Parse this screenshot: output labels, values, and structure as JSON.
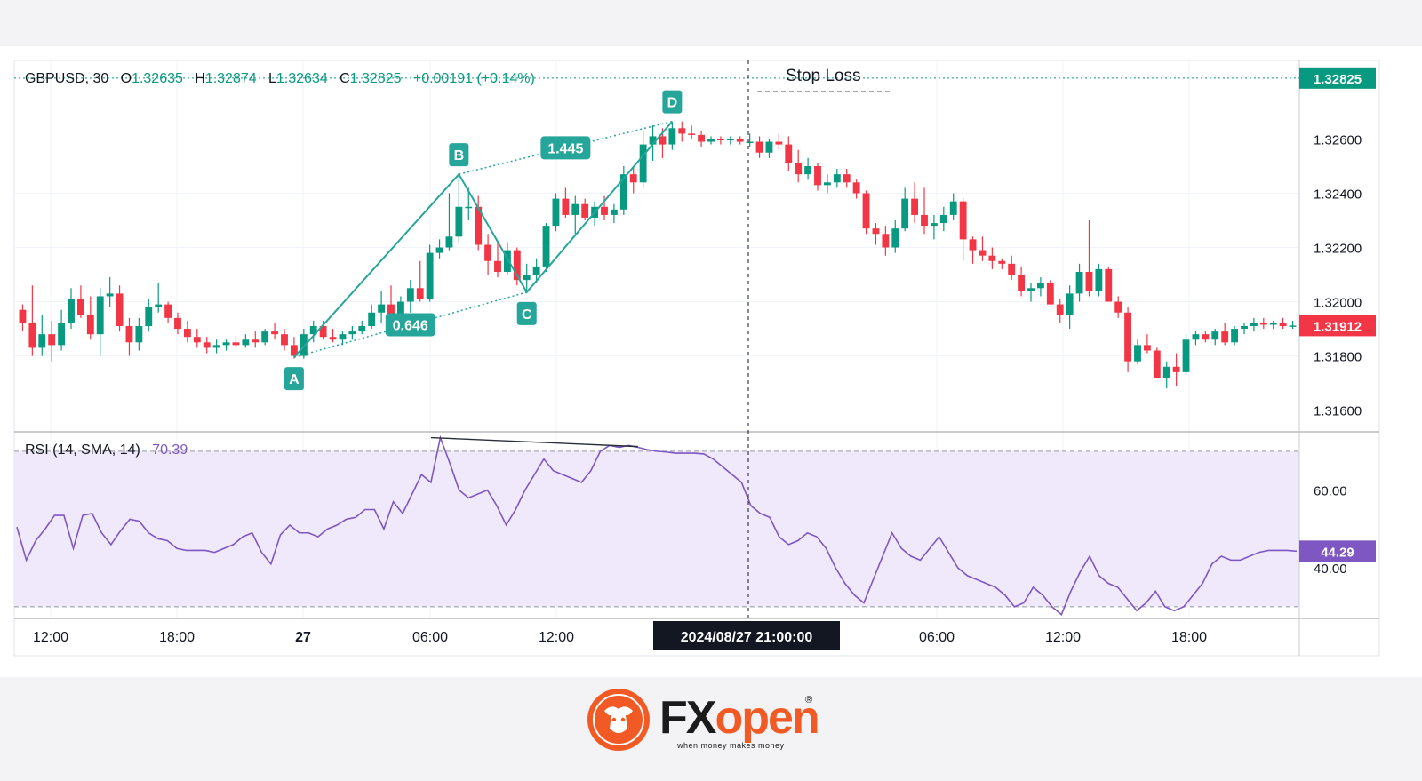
{
  "legend": {
    "symbol": "GBPUSD, 30",
    "o_label": "O",
    "o_value": "1.32635",
    "h_label": "H",
    "h_value": "1.32874",
    "l_label": "L",
    "l_value": "1.32634",
    "c_label": "C",
    "c_value": "1.32825",
    "change": "+0.00191 (+0.14%)"
  },
  "rsi_legend": {
    "label": "RSI (14, SMA, 14)",
    "value": "70.39"
  },
  "brand": {
    "name_a": "FX",
    "name_b": "open",
    "reg": "®",
    "tagline": "when money makes money"
  },
  "colors": {
    "up": "#089981",
    "down": "#f23645",
    "pattern": "#26a69a",
    "rsi": "#7e57c2",
    "rsi_band": "#efe9fb",
    "logo": "#f15a24"
  },
  "chart_data": [
    {
      "type": "candlestick",
      "symbol": "GBPUSD",
      "timeframe": "30",
      "ylim": [
        1.3152,
        1.3289
      ],
      "price_ticks": [
        "1.32600",
        "1.32400",
        "1.32200",
        "1.32000",
        "1.31800",
        "1.31600"
      ],
      "x_ticks": [
        "12:00",
        "18:00",
        "27",
        "06:00",
        "12:00",
        "06:00",
        "12:00",
        "18:00"
      ],
      "crosshair_label": "2024/08/27   21:00:00",
      "price_badges": [
        {
          "label": "1.32825",
          "price": 1.32825,
          "color": "#089981"
        },
        {
          "label": "1.31912",
          "price": 1.31912,
          "color": "#f23645"
        }
      ],
      "pattern_points": [
        {
          "label": "A",
          "bar": 28,
          "price": 1.31795
        },
        {
          "label": "B",
          "bar": 45,
          "price": 1.3247
        },
        {
          "label": "C",
          "bar": 52,
          "price": 1.32035
        },
        {
          "label": "D",
          "bar": 67,
          "price": 1.32665
        }
      ],
      "ratios": [
        {
          "label": "0.646",
          "from": "A",
          "to": "C"
        },
        {
          "label": "1.445",
          "from": "B",
          "to": "D"
        }
      ],
      "annotations": [
        "Stop Loss"
      ],
      "stop_loss_price": 1.32775,
      "candles": [
        [
          1.3197,
          1.3199,
          1.3189,
          1.3192
        ],
        [
          1.3192,
          1.3206,
          1.318,
          1.3183
        ],
        [
          1.3183,
          1.3195,
          1.318,
          1.3188
        ],
        [
          1.3188,
          1.3193,
          1.3178,
          1.3184
        ],
        [
          1.3184,
          1.3197,
          1.3182,
          1.3192
        ],
        [
          1.3192,
          1.3205,
          1.319,
          1.3201
        ],
        [
          1.3201,
          1.3206,
          1.3194,
          1.3195
        ],
        [
          1.3195,
          1.3202,
          1.3186,
          1.3188
        ],
        [
          1.3188,
          1.3205,
          1.318,
          1.3202
        ],
        [
          1.3202,
          1.3209,
          1.3198,
          1.3203
        ],
        [
          1.3203,
          1.3206,
          1.3189,
          1.3191
        ],
        [
          1.3191,
          1.3194,
          1.318,
          1.3185
        ],
        [
          1.3185,
          1.3194,
          1.3182,
          1.3191
        ],
        [
          1.3191,
          1.3201,
          1.3189,
          1.3198
        ],
        [
          1.3198,
          1.3207,
          1.3196,
          1.3199
        ],
        [
          1.3199,
          1.32,
          1.3192,
          1.3194
        ],
        [
          1.3194,
          1.3196,
          1.3188,
          1.319
        ],
        [
          1.319,
          1.3193,
          1.3185,
          1.3187
        ],
        [
          1.3187,
          1.319,
          1.3183,
          1.3185
        ],
        [
          1.3185,
          1.3187,
          1.3181,
          1.3183
        ],
        [
          1.3183,
          1.3186,
          1.3181,
          1.3184
        ],
        [
          1.3184,
          1.3186,
          1.3182,
          1.3185
        ],
        [
          1.3185,
          1.3187,
          1.3183,
          1.3184
        ],
        [
          1.3184,
          1.3188,
          1.3183,
          1.3186
        ],
        [
          1.3186,
          1.3189,
          1.3183,
          1.3185
        ],
        [
          1.3185,
          1.319,
          1.3184,
          1.3189
        ],
        [
          1.3189,
          1.3192,
          1.3186,
          1.3188
        ],
        [
          1.3188,
          1.319,
          1.3182,
          1.3184
        ],
        [
          1.3184,
          1.3187,
          1.3179,
          1.318
        ],
        [
          1.318,
          1.319,
          1.3179,
          1.3188
        ],
        [
          1.3188,
          1.3193,
          1.3185,
          1.3191
        ],
        [
          1.3191,
          1.3193,
          1.3186,
          1.3187
        ],
        [
          1.3187,
          1.319,
          1.3185,
          1.3186
        ],
        [
          1.3186,
          1.3189,
          1.3184,
          1.3188
        ],
        [
          1.3188,
          1.3191,
          1.3186,
          1.3189
        ],
        [
          1.3189,
          1.3193,
          1.3188,
          1.3191
        ],
        [
          1.3191,
          1.3199,
          1.319,
          1.3196
        ],
        [
          1.3196,
          1.3204,
          1.3192,
          1.3199
        ],
        [
          1.3199,
          1.3206,
          1.319,
          1.3191
        ],
        [
          1.3191,
          1.3202,
          1.3189,
          1.32
        ],
        [
          1.32,
          1.3208,
          1.3196,
          1.3205
        ],
        [
          1.3205,
          1.3215,
          1.32,
          1.3201
        ],
        [
          1.3201,
          1.3221,
          1.32,
          1.3218
        ],
        [
          1.3218,
          1.3223,
          1.3216,
          1.322
        ],
        [
          1.322,
          1.324,
          1.3219,
          1.3224
        ],
        [
          1.3224,
          1.3247,
          1.3222,
          1.3235
        ],
        [
          1.3235,
          1.3242,
          1.323,
          1.3235
        ],
        [
          1.3235,
          1.3239,
          1.3219,
          1.3221
        ],
        [
          1.3221,
          1.3225,
          1.321,
          1.3215
        ],
        [
          1.3215,
          1.3222,
          1.3209,
          1.3211
        ],
        [
          1.3211,
          1.3222,
          1.321,
          1.3219
        ],
        [
          1.3219,
          1.322,
          1.3206,
          1.3208
        ],
        [
          1.3208,
          1.3214,
          1.3204,
          1.321
        ],
        [
          1.321,
          1.3216,
          1.3207,
          1.3213
        ],
        [
          1.3213,
          1.3229,
          1.3211,
          1.3228
        ],
        [
          1.3228,
          1.324,
          1.3226,
          1.3238
        ],
        [
          1.3238,
          1.3242,
          1.3231,
          1.3232
        ],
        [
          1.3232,
          1.3239,
          1.3225,
          1.3236
        ],
        [
          1.3236,
          1.3238,
          1.323,
          1.3231
        ],
        [
          1.3231,
          1.3237,
          1.3228,
          1.3235
        ],
        [
          1.3235,
          1.3239,
          1.323,
          1.3232
        ],
        [
          1.3232,
          1.3236,
          1.3229,
          1.3234
        ],
        [
          1.3234,
          1.325,
          1.3232,
          1.3247
        ],
        [
          1.3247,
          1.325,
          1.324,
          1.3244
        ],
        [
          1.3244,
          1.3263,
          1.3242,
          1.3258
        ],
        [
          1.3258,
          1.3265,
          1.3252,
          1.3261
        ],
        [
          1.3261,
          1.3264,
          1.3253,
          1.3258
        ],
        [
          1.3258,
          1.32665,
          1.3256,
          1.3264
        ],
        [
          1.3264,
          1.32665,
          1.3259,
          1.3262
        ],
        [
          1.3262,
          1.3265,
          1.326,
          1.32615
        ],
        [
          1.32615,
          1.3263,
          1.3257,
          1.3259
        ],
        [
          1.3259,
          1.3261,
          1.3258,
          1.326
        ],
        [
          1.326,
          1.3261,
          1.3258,
          1.32595
        ],
        [
          1.32595,
          1.3261,
          1.3258,
          1.326
        ],
        [
          1.326,
          1.3261,
          1.3258,
          1.3259
        ],
        [
          1.3259,
          1.3262,
          1.3257,
          1.3259
        ],
        [
          1.3259,
          1.3261,
          1.3253,
          1.3255
        ],
        [
          1.3255,
          1.326,
          1.3253,
          1.3259
        ],
        [
          1.3259,
          1.3262,
          1.3256,
          1.3258
        ],
        [
          1.3258,
          1.3261,
          1.3248,
          1.3251
        ],
        [
          1.3251,
          1.3256,
          1.3244,
          1.3247
        ],
        [
          1.3247,
          1.3253,
          1.3245,
          1.325
        ],
        [
          1.325,
          1.3251,
          1.3241,
          1.3243
        ],
        [
          1.3243,
          1.3247,
          1.324,
          1.3244
        ],
        [
          1.3244,
          1.3249,
          1.3242,
          1.3247
        ],
        [
          1.3247,
          1.3249,
          1.3242,
          1.3244
        ],
        [
          1.3244,
          1.3245,
          1.3238,
          1.324
        ],
        [
          1.324,
          1.3241,
          1.3225,
          1.3227
        ],
        [
          1.3227,
          1.3229,
          1.3221,
          1.3225
        ],
        [
          1.3225,
          1.3228,
          1.3217,
          1.322
        ],
        [
          1.322,
          1.323,
          1.3218,
          1.3227
        ],
        [
          1.3227,
          1.3242,
          1.3226,
          1.3238
        ],
        [
          1.3238,
          1.3244,
          1.3229,
          1.3232
        ],
        [
          1.3232,
          1.3242,
          1.3225,
          1.3228
        ],
        [
          1.3228,
          1.3232,
          1.3223,
          1.3229
        ],
        [
          1.3229,
          1.3235,
          1.3226,
          1.3232
        ],
        [
          1.3232,
          1.324,
          1.323,
          1.3237
        ],
        [
          1.3237,
          1.3238,
          1.3215,
          1.3223
        ],
        [
          1.3223,
          1.3224,
          1.3214,
          1.3219
        ],
        [
          1.3219,
          1.3224,
          1.3215,
          1.3217
        ],
        [
          1.3217,
          1.322,
          1.3212,
          1.3215
        ],
        [
          1.3215,
          1.3216,
          1.3212,
          1.3214
        ],
        [
          1.3214,
          1.3217,
          1.3208,
          1.321
        ],
        [
          1.321,
          1.3213,
          1.3202,
          1.3204
        ],
        [
          1.3204,
          1.3207,
          1.32,
          1.3205
        ],
        [
          1.3205,
          1.3209,
          1.3202,
          1.3207
        ],
        [
          1.3207,
          1.3208,
          1.3199,
          1.3199
        ],
        [
          1.3199,
          1.3201,
          1.3192,
          1.3195
        ],
        [
          1.3195,
          1.3206,
          1.319,
          1.3203
        ],
        [
          1.3203,
          1.3214,
          1.32,
          1.3211
        ],
        [
          1.3211,
          1.323,
          1.3202,
          1.3204
        ],
        [
          1.3204,
          1.3214,
          1.3202,
          1.3212
        ],
        [
          1.3212,
          1.3213,
          1.3201,
          1.32
        ],
        [
          1.32,
          1.3202,
          1.3194,
          1.3196
        ],
        [
          1.3196,
          1.3198,
          1.3174,
          1.3178
        ],
        [
          1.3178,
          1.3186,
          1.3177,
          1.3184
        ],
        [
          1.3184,
          1.3188,
          1.3181,
          1.3182
        ],
        [
          1.3182,
          1.3183,
          1.3172,
          1.3172
        ],
        [
          1.3172,
          1.3178,
          1.3168,
          1.3176
        ],
        [
          1.3176,
          1.3181,
          1.3169,
          1.3174
        ],
        [
          1.3174,
          1.3188,
          1.3173,
          1.3186
        ],
        [
          1.3186,
          1.3189,
          1.3184,
          1.3188
        ],
        [
          1.3188,
          1.3189,
          1.3185,
          1.3186
        ],
        [
          1.3186,
          1.319,
          1.3184,
          1.3189
        ],
        [
          1.3189,
          1.3192,
          1.3184,
          1.3185
        ],
        [
          1.3185,
          1.3191,
          1.3184,
          1.319
        ],
        [
          1.319,
          1.3192,
          1.3188,
          1.3191
        ],
        [
          1.3191,
          1.3194,
          1.3189,
          1.3192
        ],
        [
          1.3192,
          1.3194,
          1.319,
          1.31915
        ],
        [
          1.31915,
          1.3193,
          1.319,
          1.3192
        ],
        [
          1.3192,
          1.3194,
          1.319,
          1.3191
        ],
        [
          1.3191,
          1.3193,
          1.319,
          1.31912
        ]
      ]
    },
    {
      "type": "line",
      "name": "RSI (14, SMA, 14)",
      "ylim": [
        27,
        75
      ],
      "y_ticks": [
        "60.00",
        "40.00"
      ],
      "bands": [
        70,
        30
      ],
      "current_badge": "44.29",
      "current": 44.29,
      "divergence_line": [
        [
          44,
          73.5
        ],
        [
          66,
          71.2
        ]
      ],
      "values": [
        50.5,
        42,
        47,
        50,
        53.5,
        53.5,
        45,
        53.5,
        54,
        49,
        46,
        49.5,
        52.5,
        52,
        49,
        47.5,
        47,
        45,
        44.5,
        44.5,
        44.5,
        44,
        45,
        46,
        48,
        49,
        44,
        41,
        48.5,
        51,
        49,
        49,
        48,
        50,
        51,
        52.5,
        53,
        55,
        55,
        50,
        57,
        54,
        59,
        64,
        62,
        73.5,
        67,
        60,
        58,
        59,
        60,
        56,
        51,
        55,
        60,
        64,
        68,
        65,
        64,
        63,
        62,
        65,
        70,
        71.5,
        71,
        71.5,
        71,
        70.4,
        70,
        69.8,
        69.5,
        69.5,
        69.5,
        69.3,
        68,
        66,
        64,
        62,
        56,
        54,
        53,
        48,
        46,
        47,
        49,
        48,
        45,
        40,
        36,
        33,
        31,
        37,
        43,
        49,
        45,
        43,
        42,
        45,
        48,
        44,
        40,
        38,
        37,
        36,
        35,
        33,
        30,
        31,
        35,
        33,
        30,
        28,
        34,
        39,
        43,
        38,
        36,
        35,
        32,
        29,
        31,
        34,
        30,
        29,
        30,
        33,
        36,
        41,
        43,
        42,
        42,
        43,
        44,
        44.5,
        44.5,
        44.5,
        44.29
      ]
    }
  ]
}
